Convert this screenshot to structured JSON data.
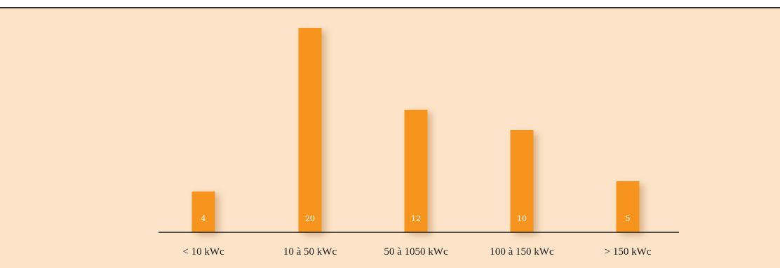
{
  "colors": {
    "panel_background": "#fde4c8",
    "bar": "#f7941d",
    "bar_shadow": "#c9a27a",
    "axis": "#1a1a1a",
    "bar_value_text": "#ffffff"
  },
  "chart_data": {
    "type": "bar",
    "title": "",
    "xlabel": "",
    "ylabel": "",
    "categories": [
      "< 10 kWc",
      "10 à 50  kWc",
      "50 à 1050  kWc",
      "100 à 150  kWc",
      "> 150  kWc"
    ],
    "values": [
      4,
      20,
      12,
      10,
      5
    ],
    "ylim": [
      0,
      20
    ],
    "grid": false,
    "data_labels": true,
    "legend": "none"
  }
}
